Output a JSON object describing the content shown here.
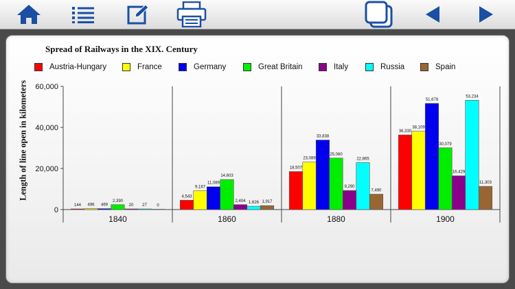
{
  "toolbar": {
    "items": [
      {
        "name": "home-button",
        "icon": "home-icon"
      },
      {
        "name": "list-button",
        "icon": "list-icon"
      },
      {
        "name": "edit-button",
        "icon": "edit-icon"
      },
      {
        "name": "print-button",
        "icon": "printer-icon"
      },
      {
        "name": "copy-button",
        "icon": "copy-icon"
      },
      {
        "name": "previous-button",
        "icon": "arrow-left-icon"
      },
      {
        "name": "next-button",
        "icon": "arrow-right-icon"
      }
    ],
    "accent_color": "#1a4fa3"
  },
  "chart_data": {
    "type": "bar",
    "title": "Spread of Railways in the XIX. Century",
    "xlabel": "",
    "ylabel": "Length of line open in kilometers",
    "ylim": [
      0,
      60000
    ],
    "yticks": [
      "0",
      "20,000",
      "40,000",
      "60,000"
    ],
    "categories": [
      "1840",
      "1860",
      "1880",
      "1900"
    ],
    "legend_position": "top",
    "grid": false,
    "series": [
      {
        "name": "Austria-Hungary",
        "color": "#ff0000",
        "values": [
          144,
          4543,
          18507,
          36330
        ],
        "labels": [
          "144",
          "4,543",
          "18,507",
          "36,330"
        ]
      },
      {
        "name": "France",
        "color": "#ffff00",
        "values": [
          496,
          9167,
          23089,
          38109
        ],
        "labels": [
          "496",
          "9,167",
          "23,089",
          "38,109"
        ]
      },
      {
        "name": "Germany",
        "color": "#0000ee",
        "values": [
          469,
          11089,
          33838,
          51678
        ],
        "labels": [
          "469",
          "11,089",
          "33,838",
          "51,678"
        ]
      },
      {
        "name": "Great Britain",
        "color": "#00ee00",
        "values": [
          2390,
          14603,
          25060,
          30079
        ],
        "labels": [
          "2,390",
          "14,603",
          "25,060",
          "30,079"
        ]
      },
      {
        "name": "Italy",
        "color": "#8b008b",
        "values": [
          20,
          2404,
          9290,
          16429
        ],
        "labels": [
          "20",
          "2,404",
          "9,290",
          "16,429"
        ]
      },
      {
        "name": "Russia",
        "color": "#00ffff",
        "values": [
          27,
          1626,
          22865,
          53234
        ],
        "labels": [
          "27",
          "1,626",
          "22,865",
          "53,234"
        ]
      },
      {
        "name": "Spain",
        "color": "#996633",
        "values": [
          0,
          1917,
          7490,
          11303
        ],
        "labels": [
          "0",
          "1,917",
          "7,490",
          "11,303"
        ]
      }
    ]
  }
}
